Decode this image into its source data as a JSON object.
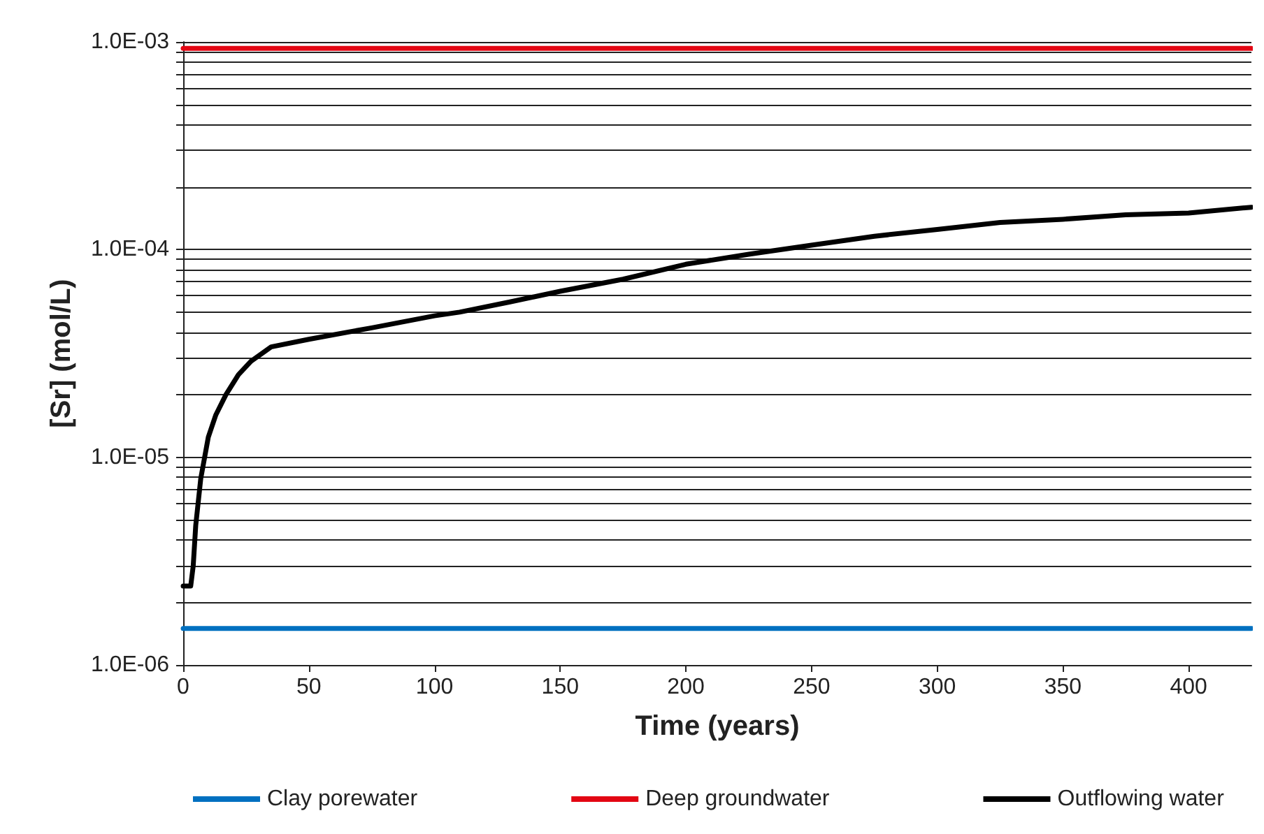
{
  "chart_data": {
    "type": "line",
    "xlabel": "Time (years)",
    "ylabel": "[Sr] (mol/L)",
    "xlim": [
      0,
      425
    ],
    "xticks": [
      0,
      50,
      100,
      150,
      200,
      250,
      300,
      350,
      400
    ],
    "ylim": [
      1e-06,
      0.001
    ],
    "log": "y",
    "yticks": [
      {
        "value": 1e-06,
        "label": "1.0E-06"
      },
      {
        "value": 2e-06,
        "label": null
      },
      {
        "value": 3e-06,
        "label": null
      },
      {
        "value": 4e-06,
        "label": null
      },
      {
        "value": 5e-06,
        "label": null
      },
      {
        "value": 6e-06,
        "label": null
      },
      {
        "value": 7e-06,
        "label": null
      },
      {
        "value": 8e-06,
        "label": null
      },
      {
        "value": 9e-06,
        "label": null
      },
      {
        "value": 1e-05,
        "label": "1.0E-05"
      },
      {
        "value": 2e-05,
        "label": null
      },
      {
        "value": 3e-05,
        "label": null
      },
      {
        "value": 4e-05,
        "label": null
      },
      {
        "value": 5e-05,
        "label": null
      },
      {
        "value": 6e-05,
        "label": null
      },
      {
        "value": 7e-05,
        "label": null
      },
      {
        "value": 8e-05,
        "label": null
      },
      {
        "value": 9e-05,
        "label": null
      },
      {
        "value": 0.0001,
        "label": "1.0E-04"
      },
      {
        "value": 0.0002,
        "label": null
      },
      {
        "value": 0.0003,
        "label": null
      },
      {
        "value": 0.0004,
        "label": null
      },
      {
        "value": 0.0005,
        "label": null
      },
      {
        "value": 0.0006,
        "label": null
      },
      {
        "value": 0.0007,
        "label": null
      },
      {
        "value": 0.0008,
        "label": null
      },
      {
        "value": 0.0009,
        "label": null
      },
      {
        "value": 0.001,
        "label": "1.0E-03"
      }
    ],
    "grid": "y",
    "legend": "bottom",
    "marker": "none",
    "line_style": "solid",
    "series": [
      {
        "name": "Clay porewater",
        "color": "#0070c0",
        "x": [
          0,
          425
        ],
        "values": [
          1.5e-06,
          1.5e-06
        ]
      },
      {
        "name": "Deep groundwater",
        "color": "#e30613",
        "x": [
          0,
          425
        ],
        "values": [
          0.00093,
          0.00093
        ]
      },
      {
        "name": "Outflowing water",
        "color": "#000000",
        "x": [
          0,
          3,
          4,
          5,
          7,
          10,
          13,
          17,
          22,
          27,
          35,
          50,
          75,
          100,
          110,
          130,
          150,
          175,
          200,
          225,
          250,
          275,
          300,
          325,
          350,
          375,
          400,
          425
        ],
        "values": [
          2.4e-06,
          2.4e-06,
          3e-06,
          4.7e-06,
          7.9e-06,
          1.25e-05,
          1.6e-05,
          2e-05,
          2.5e-05,
          2.9e-05,
          3.4e-05,
          3.7e-05,
          4.2e-05,
          4.8e-05,
          5e-05,
          5.6e-05,
          6.3e-05,
          7.2e-05,
          8.5e-05,
          9.5e-05,
          0.000105,
          0.000116,
          0.000125,
          0.000135,
          0.00014,
          0.000147,
          0.00015,
          0.00016
        ]
      }
    ]
  }
}
